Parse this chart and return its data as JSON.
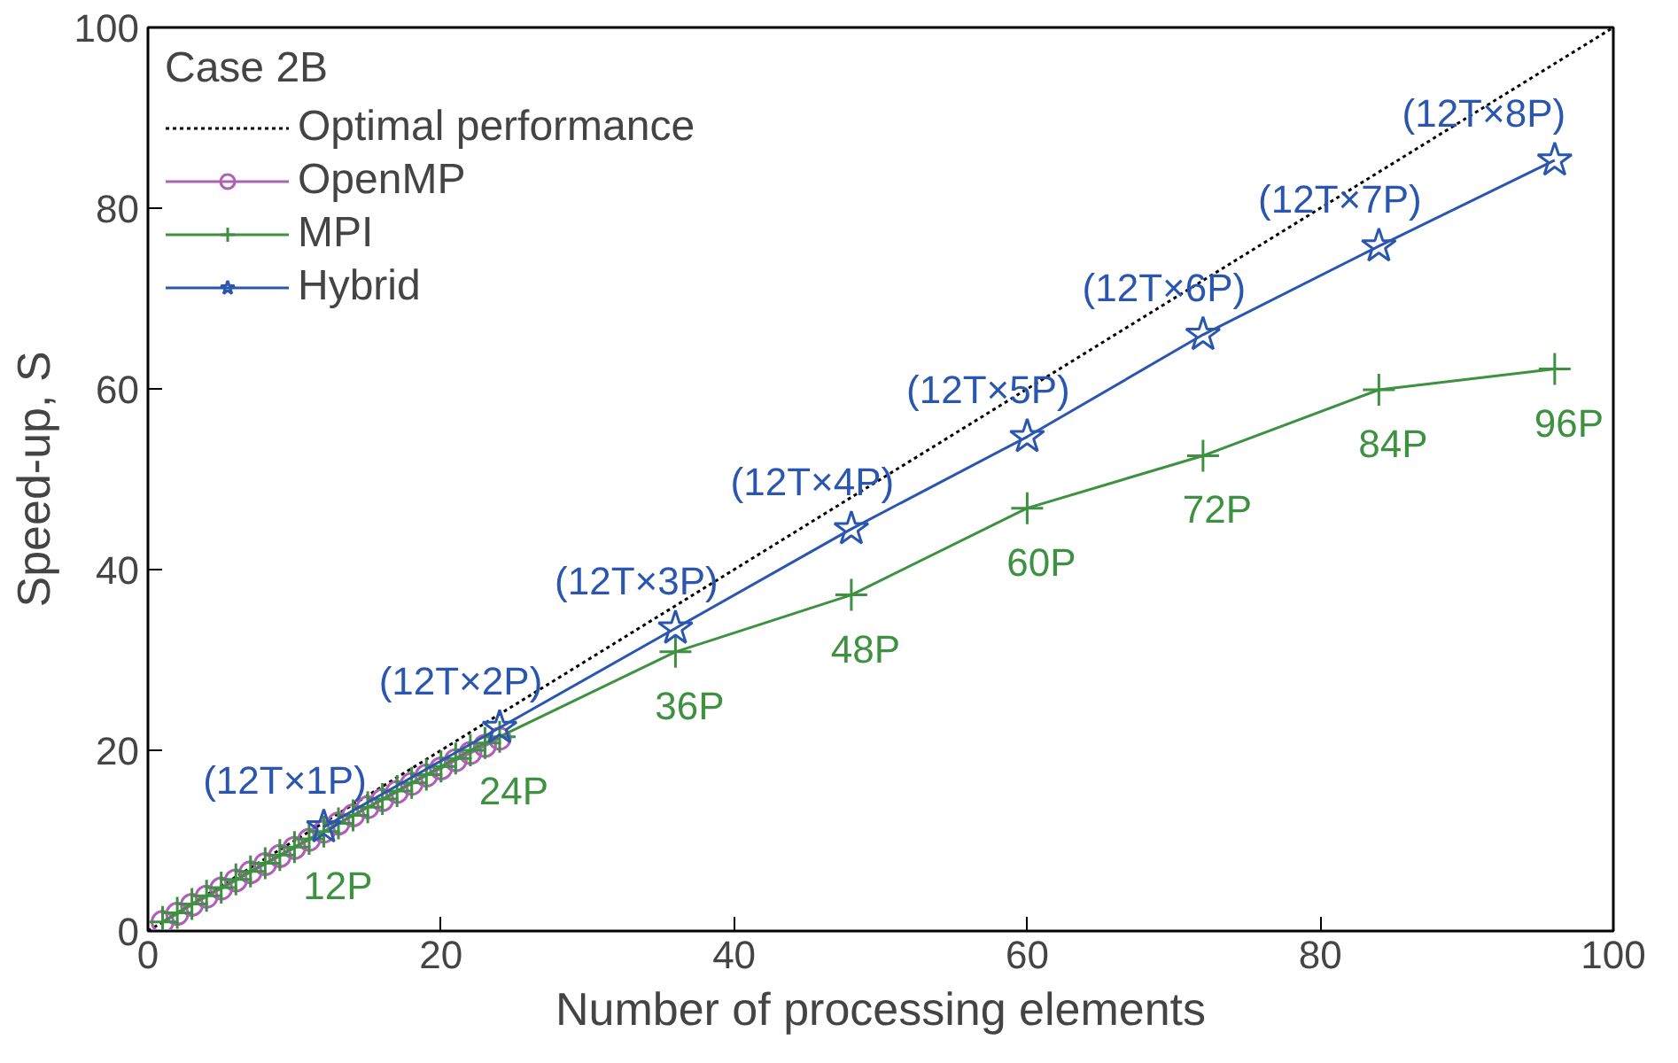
{
  "chart_data": {
    "type": "line",
    "xlabel": "Number of processing elements",
    "ylabel": "Speed-up, S",
    "legend_title": "Case 2B",
    "legend": "top left",
    "grid": false,
    "xlim": [
      0,
      100
    ],
    "xticks": [
      0,
      20,
      40,
      60,
      80,
      100
    ],
    "ylim": [
      0,
      100
    ],
    "yticks": [
      0,
      20,
      40,
      60,
      80,
      100
    ],
    "series": [
      {
        "name": "Optimal performance",
        "color": "#000000",
        "line_style": "dotted",
        "marker": "none",
        "x": [
          0,
          100
        ],
        "values": [
          0,
          100
        ]
      },
      {
        "name": "OpenMP",
        "color": "#b05fb8",
        "marker": "circle",
        "x": [
          1,
          2,
          3,
          4,
          5,
          6,
          7,
          8,
          9,
          10,
          11,
          12,
          13,
          14,
          15,
          16,
          17,
          18,
          19,
          20,
          21,
          22,
          23,
          24
        ],
        "values": [
          1,
          1.9,
          2.9,
          3.8,
          4.7,
          5.6,
          6.5,
          7.4,
          8.3,
          9.2,
          10.1,
          11,
          11.9,
          12.8,
          13.7,
          14.5,
          15.4,
          16.3,
          17.2,
          18,
          18.9,
          19.7,
          20.5,
          21.3
        ]
      },
      {
        "name": "MPI",
        "color": "#3d9140",
        "marker": "cross",
        "x": [
          1,
          2,
          3,
          4,
          5,
          6,
          7,
          8,
          9,
          10,
          11,
          12,
          13,
          14,
          15,
          16,
          17,
          18,
          19,
          20,
          21,
          22,
          23,
          24,
          36,
          48,
          60,
          72,
          84,
          96
        ],
        "values": [
          1,
          2,
          3,
          3.9,
          4.8,
          5.7,
          6.6,
          7.5,
          8.4,
          9.3,
          10.2,
          11,
          11.9,
          12.8,
          13.7,
          14.6,
          15.5,
          16.4,
          17.3,
          18.2,
          19.1,
          20,
          20.8,
          21.5,
          30.9,
          37.2,
          46.8,
          52.6,
          59.9,
          62.2
        ]
      },
      {
        "name": "Hybrid",
        "color": "#2a56b0",
        "marker": "star",
        "x": [
          12,
          24,
          36,
          48,
          60,
          72,
          84,
          96
        ],
        "values": [
          11.5,
          22.5,
          33.5,
          44.5,
          54.7,
          66,
          75.8,
          85.3
        ]
      }
    ],
    "annotations": [
      {
        "text": "(12T×1P)",
        "x": 12,
        "y": 11.5
      },
      {
        "text": "(12T×2P)",
        "x": 24,
        "y": 22.5
      },
      {
        "text": "(12T×3P)",
        "x": 36,
        "y": 33.5
      },
      {
        "text": "(12T×4P)",
        "x": 48,
        "y": 44.5
      },
      {
        "text": "(12T×5P)",
        "x": 60,
        "y": 54.7
      },
      {
        "text": "(12T×6P)",
        "x": 72,
        "y": 66
      },
      {
        "text": "(12T×7P)",
        "x": 84,
        "y": 75.8
      },
      {
        "text": "(12T×8P)",
        "x": 96,
        "y": 85.3
      },
      {
        "text": "12P",
        "x": 12,
        "y": 11
      },
      {
        "text": "24P",
        "x": 24,
        "y": 21.5
      },
      {
        "text": "36P",
        "x": 36,
        "y": 30.9
      },
      {
        "text": "48P",
        "x": 48,
        "y": 37.2
      },
      {
        "text": "60P",
        "x": 60,
        "y": 46.8
      },
      {
        "text": "72P",
        "x": 72,
        "y": 52.6
      },
      {
        "text": "84P",
        "x": 84,
        "y": 59.9
      },
      {
        "text": "96P",
        "x": 96,
        "y": 62.2
      }
    ]
  }
}
